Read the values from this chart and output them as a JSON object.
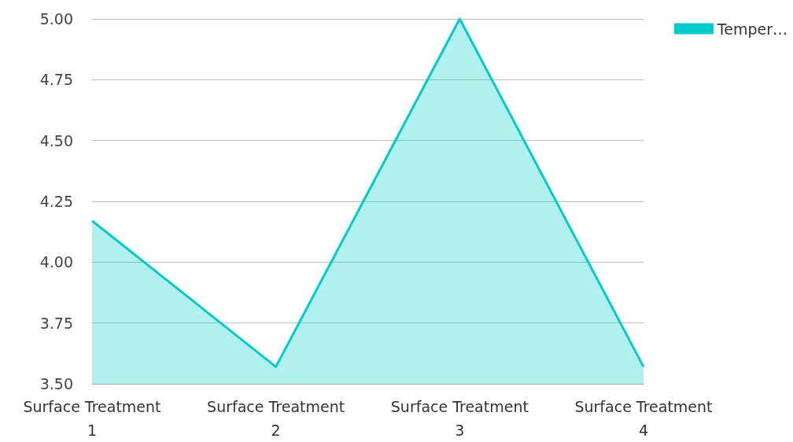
{
  "chart_data": {
    "type": "area",
    "categories": [
      "Surface Treatment 1",
      "Surface Treatment 2",
      "Surface Treatment 3",
      "Surface Treatment 4"
    ],
    "series": [
      {
        "name": "Temper…",
        "color": "#00cccc",
        "values": [
          4.17,
          3.57,
          5.0,
          3.57
        ]
      }
    ],
    "ylim": [
      3.5,
      5.0
    ],
    "yticks": [
      {
        "value": 3.5,
        "label": "3.50"
      },
      {
        "value": 3.75,
        "label": "3.75"
      },
      {
        "value": 4.0,
        "label": "4.00"
      },
      {
        "value": 4.25,
        "label": "4.25"
      },
      {
        "value": 4.5,
        "label": "4.50"
      },
      {
        "value": 4.75,
        "label": "4.75"
      },
      {
        "value": 5.0,
        "label": "5.00"
      }
    ],
    "grid": "y",
    "legend": "top right",
    "marker": "none"
  }
}
